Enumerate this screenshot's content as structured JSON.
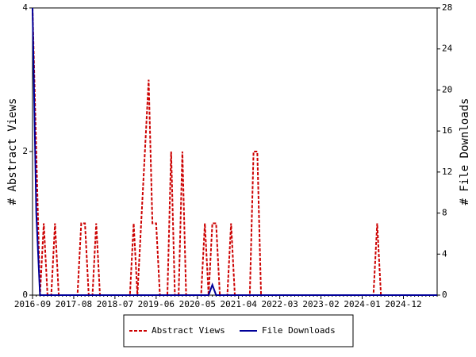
{
  "chart_data": {
    "type": "line",
    "categories": [
      "2016-09",
      null,
      null,
      null,
      null,
      null,
      null,
      null,
      null,
      null,
      null,
      "2017-08",
      null,
      null,
      null,
      null,
      null,
      null,
      null,
      null,
      null,
      null,
      "2018-07",
      null,
      null,
      null,
      null,
      null,
      null,
      null,
      null,
      null,
      null,
      "2019-06",
      null,
      null,
      null,
      null,
      null,
      null,
      null,
      null,
      null,
      null,
      "2020-05",
      null,
      null,
      null,
      null,
      null,
      null,
      null,
      null,
      null,
      null,
      "2021-04",
      null,
      null,
      null,
      null,
      null,
      null,
      null,
      null,
      null,
      null,
      "2022-03",
      null,
      null,
      null,
      null,
      null,
      null,
      null,
      null,
      null,
      null,
      "2023-02",
      null,
      null,
      null,
      null,
      null,
      null,
      null,
      null,
      null,
      null,
      "2024-01",
      null,
      null,
      null,
      null,
      null,
      null,
      null,
      null,
      null,
      null,
      "2024-12",
      null,
      null,
      null,
      null,
      null,
      null,
      null,
      null,
      null
    ],
    "series": [
      {
        "name": "Abstract Views",
        "color": "#cc0000",
        "dashed": true,
        "axis": "y",
        "values": [
          4,
          2,
          0,
          1,
          0,
          0,
          1,
          0,
          0,
          0,
          0,
          0,
          0,
          1,
          1,
          0,
          0,
          1,
          0,
          0,
          0,
          0,
          0,
          0,
          0,
          0,
          0,
          1,
          0,
          1,
          2,
          3,
          1,
          1,
          0,
          0,
          0,
          2,
          0,
          0,
          2,
          0,
          0,
          0,
          0,
          0,
          1,
          0,
          1,
          1,
          0,
          0,
          0,
          1,
          0,
          0,
          0,
          0,
          0,
          2,
          2,
          0,
          0,
          0,
          0,
          0,
          0,
          0,
          0,
          0,
          0,
          0,
          0,
          0,
          0,
          0,
          0,
          0,
          0,
          0,
          0,
          0,
          0,
          0,
          0,
          0,
          0,
          0,
          0,
          0,
          0,
          0,
          1,
          0,
          0,
          0,
          0,
          0,
          0,
          0,
          0,
          0,
          0,
          0,
          0,
          0,
          0,
          0,
          0
        ]
      },
      {
        "name": "File Downloads",
        "color": "#000099",
        "dashed": false,
        "axis": "y2",
        "values": [
          28,
          8,
          0,
          0,
          0,
          0,
          0,
          0,
          0,
          0,
          0,
          0,
          0,
          0,
          0,
          0,
          0,
          0,
          0,
          0,
          0,
          0,
          0,
          0,
          0,
          0,
          0,
          0,
          0,
          0,
          0,
          0,
          0,
          0,
          0,
          0,
          0,
          0,
          0,
          0,
          0,
          0,
          0,
          0,
          0,
          0,
          0,
          0,
          1,
          0,
          0,
          0,
          0,
          0,
          0,
          0,
          0,
          0,
          0,
          0,
          0,
          0,
          0,
          0,
          0,
          0,
          0,
          0,
          0,
          0,
          0,
          0,
          0,
          0,
          0,
          0,
          0,
          0,
          0,
          0,
          0,
          0,
          0,
          0,
          0,
          0,
          0,
          0,
          0,
          0,
          0,
          0,
          0,
          0,
          0,
          0,
          0,
          0,
          0,
          0,
          0,
          0,
          0,
          0,
          0,
          0,
          0,
          0,
          0
        ]
      }
    ],
    "ylabel": "# Abstract Views",
    "y2label": "# File Downloads",
    "ylim": [
      0,
      4
    ],
    "yticks": [
      0,
      2,
      4
    ],
    "y2lim": [
      0,
      28
    ],
    "y2ticks": [
      0,
      4,
      8,
      12,
      16,
      20,
      24,
      28
    ]
  }
}
